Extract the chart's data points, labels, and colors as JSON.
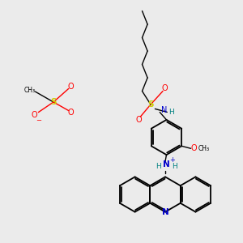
{
  "background_color": "#ebebeb",
  "fig_width": 3.0,
  "fig_height": 3.0,
  "dpi": 100,
  "colors": {
    "black": "#000000",
    "red": "#ff0000",
    "blue": "#0000cc",
    "sulfur": "#cccc00",
    "oxygen": "#ff0000",
    "nitrogen": "#0000cc",
    "teal": "#008080",
    "gray": "#404040"
  },
  "xlim": [
    0,
    10
  ],
  "ylim": [
    0,
    10
  ]
}
